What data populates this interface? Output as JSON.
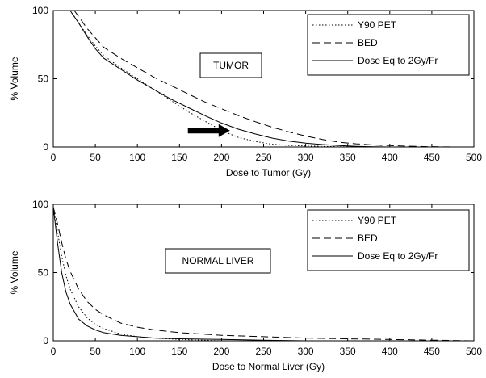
{
  "chart_data": [
    {
      "type": "line",
      "xlabel": "Dose to Tumor (Gy)",
      "ylabel": "% Volume",
      "xlim": [
        0,
        500
      ],
      "ylim": [
        0,
        100
      ],
      "xticks": [
        "0",
        "50",
        "100",
        "150",
        "200",
        "250",
        "300",
        "350",
        "400",
        "450",
        "500"
      ],
      "yticks": [
        "0",
        "50",
        "100"
      ],
      "grid": false,
      "legend_position": "top-right",
      "annotation": "TUMOR",
      "arrow": {
        "from": [
          160,
          12
        ],
        "to": [
          210,
          12
        ]
      },
      "series": [
        {
          "name": "Y90 PET",
          "style": "dotted",
          "x": [
            20,
            30,
            40,
            50,
            60,
            80,
            100,
            120,
            140,
            160,
            180,
            200,
            220,
            240,
            260,
            280,
            300,
            320,
            340,
            360
          ],
          "y": [
            100,
            91,
            82,
            74,
            67,
            58,
            50,
            42,
            34,
            26,
            19,
            12,
            7,
            4,
            2,
            1.2,
            0.7,
            0.4,
            0.2,
            0
          ]
        },
        {
          "name": "BED",
          "style": "dashed",
          "x": [
            25,
            40,
            60,
            80,
            100,
            120,
            140,
            160,
            180,
            200,
            220,
            240,
            260,
            280,
            300,
            320,
            340,
            360,
            380,
            400,
            420,
            440,
            460,
            480
          ],
          "y": [
            100,
            87,
            73,
            65,
            58,
            51,
            45,
            39,
            33,
            28,
            23,
            18.5,
            14.5,
            11,
            8,
            5.5,
            3.5,
            2.3,
            1.5,
            1,
            0.6,
            0.3,
            0.1,
            0
          ]
        },
        {
          "name": "Dose Eq to 2Gy/Fr",
          "style": "solid",
          "x": [
            20,
            30,
            40,
            50,
            60,
            80,
            100,
            120,
            140,
            160,
            180,
            200,
            220,
            240,
            260,
            280,
            300,
            320,
            340,
            360,
            380,
            400
          ],
          "y": [
            100,
            91,
            81,
            72,
            65,
            57,
            49,
            42,
            35,
            29,
            23,
            17.5,
            13,
            9.5,
            6.5,
            4.3,
            2.8,
            1.8,
            1,
            0.5,
            0.2,
            0
          ]
        }
      ]
    },
    {
      "type": "line",
      "xlabel": "Dose to Normal Liver (Gy)",
      "ylabel": "% Volume",
      "xlim": [
        0,
        500
      ],
      "ylim": [
        0,
        100
      ],
      "xticks": [
        "0",
        "50",
        "100",
        "150",
        "200",
        "250",
        "300",
        "350",
        "400",
        "450",
        "500"
      ],
      "yticks": [
        "0",
        "50",
        "100"
      ],
      "grid": false,
      "legend_position": "top-right",
      "annotation": "NORMAL LIVER",
      "series": [
        {
          "name": "Y90 PET",
          "style": "dotted",
          "x": [
            0,
            5,
            10,
            15,
            20,
            30,
            40,
            50,
            60,
            80,
            100,
            120,
            150,
            200
          ],
          "y": [
            98,
            80,
            62,
            48,
            38,
            25,
            17,
            12,
            9,
            5,
            3,
            2,
            1,
            0
          ]
        },
        {
          "name": "BED",
          "style": "dashed",
          "x": [
            0,
            5,
            10,
            15,
            20,
            30,
            40,
            50,
            60,
            80,
            100,
            120,
            150,
            200,
            250,
            300,
            350,
            400,
            450,
            500
          ],
          "y": [
            98,
            86,
            72,
            60,
            51,
            38,
            29,
            23,
            19,
            13,
            10,
            8,
            6,
            4,
            3,
            2,
            1.5,
            1,
            0.5,
            0
          ]
        },
        {
          "name": "Dose Eq to 2Gy/Fr",
          "style": "solid",
          "x": [
            0,
            5,
            10,
            15,
            20,
            30,
            40,
            50,
            60,
            80,
            100,
            120,
            150,
            200,
            250,
            300
          ],
          "y": [
            98,
            72,
            50,
            36,
            27,
            16,
            11,
            8,
            6,
            4,
            3,
            2,
            1.5,
            1,
            0.5,
            0
          ]
        }
      ]
    }
  ]
}
